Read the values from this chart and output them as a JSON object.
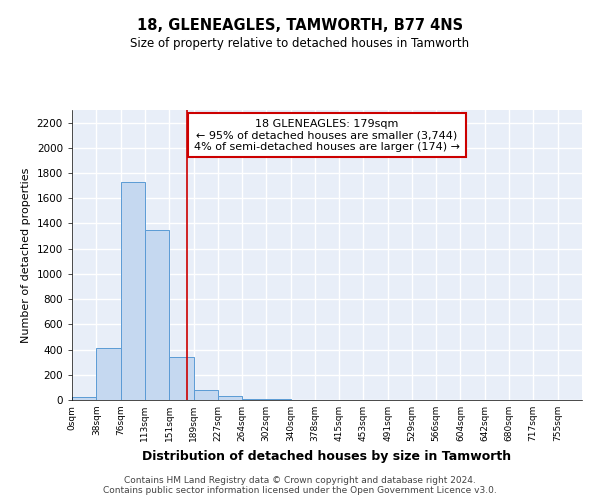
{
  "title": "18, GLENEAGLES, TAMWORTH, B77 4NS",
  "subtitle": "Size of property relative to detached houses in Tamworth",
  "xlabel": "Distribution of detached houses by size in Tamworth",
  "ylabel": "Number of detached properties",
  "bin_edges": [
    0,
    38,
    76,
    113,
    151,
    189,
    227,
    264,
    302,
    340,
    378,
    415,
    453,
    491,
    529,
    566,
    604,
    642,
    680,
    717,
    755,
    793
  ],
  "bar_heights": [
    20,
    410,
    1730,
    1350,
    340,
    80,
    30,
    10,
    5,
    3,
    2,
    0,
    0,
    0,
    0,
    0,
    0,
    0,
    0,
    0,
    0
  ],
  "bar_color": "#C5D8F0",
  "bar_edgecolor": "#5B9BD5",
  "property_size": 179,
  "vline_color": "#CC0000",
  "annotation_text": "18 GLENEAGLES: 179sqm\n← 95% of detached houses are smaller (3,744)\n4% of semi-detached houses are larger (174) →",
  "annotation_box_color": "white",
  "annotation_box_edgecolor": "#CC0000",
  "ylim": [
    0,
    2300
  ],
  "yticks": [
    0,
    200,
    400,
    600,
    800,
    1000,
    1200,
    1400,
    1600,
    1800,
    2000,
    2200
  ],
  "background_color": "white",
  "plot_bg_color": "#E8EEF8",
  "grid_color": "white",
  "footer_text": "Contains HM Land Registry data © Crown copyright and database right 2024.\nContains public sector information licensed under the Open Government Licence v3.0.",
  "tick_labels": [
    "0sqm",
    "38sqm",
    "76sqm",
    "113sqm",
    "151sqm",
    "189sqm",
    "227sqm",
    "264sqm",
    "302sqm",
    "340sqm",
    "378sqm",
    "415sqm",
    "453sqm",
    "491sqm",
    "529sqm",
    "566sqm",
    "604sqm",
    "642sqm",
    "680sqm",
    "717sqm",
    "755sqm"
  ]
}
